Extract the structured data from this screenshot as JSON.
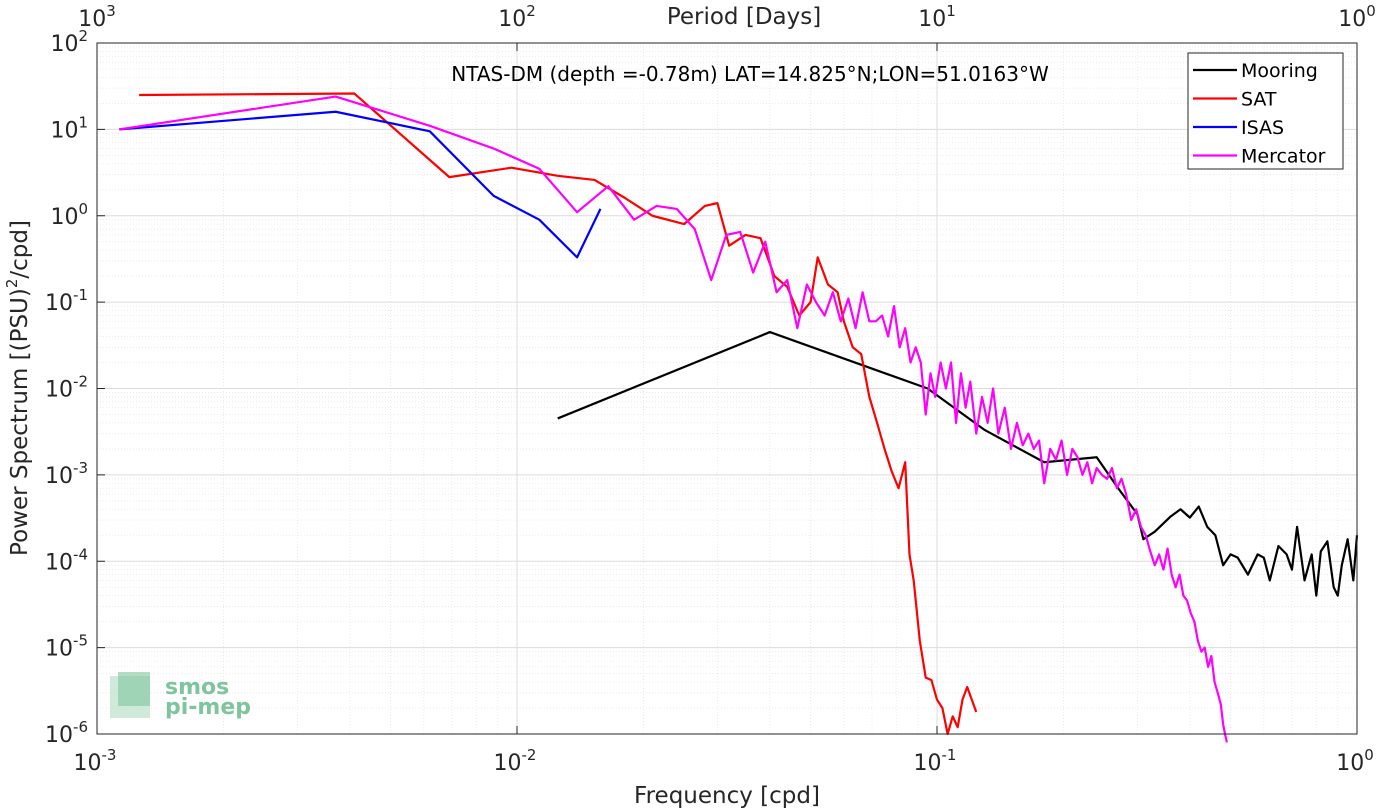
{
  "chart_data": {
    "type": "line",
    "title": "NTAS-DM (depth =-0.78m) LAT=14.825°N;LON=51.0163°W",
    "xlabel": "Frequency [cpd]",
    "ylabel_prefix": "Power Spectrum [(PSU)",
    "ylabel_exp": "2",
    "ylabel_suffix": "/cpd]",
    "top_xlabel": "Period [Days]",
    "x_scale": "log",
    "y_scale": "log",
    "xlim": [
      0.001,
      1
    ],
    "ylim": [
      1e-06,
      100
    ],
    "grid": true,
    "legend_position": "top-right",
    "x_ticks": [
      {
        "value": 0.001,
        "base": "10",
        "exp": "-3"
      },
      {
        "value": 0.01,
        "base": "10",
        "exp": "-2"
      },
      {
        "value": 0.1,
        "base": "10",
        "exp": "-1"
      },
      {
        "value": 1,
        "base": "10",
        "exp": "0"
      }
    ],
    "y_ticks": [
      {
        "value": 100,
        "base": "10",
        "exp": "2"
      },
      {
        "value": 10,
        "base": "10",
        "exp": "1"
      },
      {
        "value": 1,
        "base": "10",
        "exp": "0"
      },
      {
        "value": 0.1,
        "base": "10",
        "exp": "-1"
      },
      {
        "value": 0.01,
        "base": "10",
        "exp": "-2"
      },
      {
        "value": 0.001,
        "base": "10",
        "exp": "-3"
      },
      {
        "value": 0.0001,
        "base": "10",
        "exp": "-4"
      },
      {
        "value": 1e-05,
        "base": "10",
        "exp": "-5"
      },
      {
        "value": 1e-06,
        "base": "10",
        "exp": "-6"
      }
    ],
    "top_ticks": [
      {
        "period": 1000,
        "base": "10",
        "exp": "3"
      },
      {
        "period": 100,
        "base": "10",
        "exp": "2"
      },
      {
        "period": 10,
        "base": "10",
        "exp": "1"
      },
      {
        "period": 1,
        "base": "10",
        "exp": "0"
      }
    ],
    "series": [
      {
        "name": "Mooring",
        "color": "#000000",
        "x": [
          0.0125,
          0.04,
          0.095,
          0.13,
          0.18,
          0.24,
          0.27,
          0.3,
          0.31,
          0.33,
          0.36,
          0.38,
          0.4,
          0.42,
          0.44,
          0.46,
          0.48,
          0.5,
          0.52,
          0.55,
          0.58,
          0.6,
          0.62,
          0.65,
          0.68,
          0.7,
          0.72,
          0.75,
          0.78,
          0.8,
          0.82,
          0.85,
          0.88,
          0.9,
          0.92,
          0.95,
          0.98,
          1.0
        ],
        "y": [
          0.0045,
          0.045,
          0.01,
          0.0033,
          0.0014,
          0.0016,
          0.0007,
          0.00035,
          0.00018,
          0.00022,
          0.00033,
          0.0004,
          0.00032,
          0.00043,
          0.00025,
          0.0002,
          9e-05,
          0.00012,
          0.00011,
          7e-05,
          0.00012,
          0.00011,
          6e-05,
          0.00015,
          0.00012,
          8e-05,
          0.00025,
          6e-05,
          0.00012,
          4e-05,
          0.00013,
          0.00017,
          5e-05,
          4e-05,
          9e-05,
          0.00018,
          6e-05,
          0.0002
        ]
      },
      {
        "name": "SAT",
        "color": "#ff0000",
        "x": [
          0.00126,
          0.0041,
          0.0069,
          0.0097,
          0.0125,
          0.0153,
          0.0181,
          0.021,
          0.025,
          0.028,
          0.03,
          0.032,
          0.035,
          0.038,
          0.041,
          0.044,
          0.047,
          0.05,
          0.052,
          0.055,
          0.058,
          0.06,
          0.063,
          0.066,
          0.069,
          0.072,
          0.075,
          0.078,
          0.081,
          0.084,
          0.086,
          0.088,
          0.091,
          0.094,
          0.097,
          0.1,
          0.103,
          0.106,
          0.109,
          0.112,
          0.115,
          0.118,
          0.121,
          0.124
        ],
        "y": [
          25,
          26,
          2.8,
          3.6,
          2.9,
          2.6,
          1.6,
          1.0,
          0.8,
          1.3,
          1.4,
          0.45,
          0.6,
          0.55,
          0.2,
          0.15,
          0.07,
          0.1,
          0.33,
          0.16,
          0.13,
          0.06,
          0.03,
          0.025,
          0.008,
          0.004,
          0.002,
          0.0011,
          0.0007,
          0.0014,
          0.00012,
          6e-05,
          1.2e-05,
          4.5e-06,
          4.2e-06,
          2.5e-06,
          2e-06,
          1e-06,
          1.6e-06,
          1.2e-06,
          2.5e-06,
          3.5e-06,
          2.5e-06,
          1.8e-06
        ]
      },
      {
        "name": "ISAS",
        "color": "#0000ff",
        "x": [
          0.00113,
          0.0037,
          0.0062,
          0.0088,
          0.0113,
          0.0139,
          0.0158
        ],
        "y": [
          10,
          16,
          9.5,
          1.7,
          0.9,
          0.33,
          1.2
        ]
      },
      {
        "name": "Mercator",
        "color": "#ff00ff",
        "x": [
          0.00113,
          0.0037,
          0.0062,
          0.0088,
          0.0113,
          0.0139,
          0.0165,
          0.019,
          0.0215,
          0.024,
          0.0265,
          0.029,
          0.0315,
          0.034,
          0.0365,
          0.039,
          0.0415,
          0.044,
          0.0465,
          0.049,
          0.0515,
          0.054,
          0.0565,
          0.059,
          0.0615,
          0.064,
          0.0665,
          0.069,
          0.0715,
          0.074,
          0.0765,
          0.079,
          0.0815,
          0.084,
          0.0865,
          0.089,
          0.0915,
          0.094,
          0.0965,
          0.099,
          0.102,
          0.105,
          0.108,
          0.111,
          0.114,
          0.117,
          0.12,
          0.124,
          0.128,
          0.132,
          0.136,
          0.14,
          0.145,
          0.15,
          0.155,
          0.16,
          0.165,
          0.17,
          0.175,
          0.18,
          0.186,
          0.192,
          0.198,
          0.204,
          0.21,
          0.216,
          0.222,
          0.228,
          0.234,
          0.24,
          0.247,
          0.254,
          0.261,
          0.268,
          0.275,
          0.282,
          0.29,
          0.298,
          0.306,
          0.314,
          0.322,
          0.33,
          0.338,
          0.346,
          0.354,
          0.362,
          0.37,
          0.378,
          0.386,
          0.394,
          0.402,
          0.41,
          0.418,
          0.426,
          0.434,
          0.442,
          0.45,
          0.458,
          0.466,
          0.474,
          0.48,
          0.485,
          0.49
        ],
        "y": [
          10,
          24,
          11,
          6,
          3.5,
          1.1,
          2.2,
          0.9,
          1.3,
          1.2,
          0.7,
          0.18,
          0.6,
          0.65,
          0.22,
          0.5,
          0.13,
          0.18,
          0.05,
          0.16,
          0.1,
          0.07,
          0.13,
          0.06,
          0.11,
          0.05,
          0.13,
          0.06,
          0.06,
          0.07,
          0.04,
          0.09,
          0.03,
          0.05,
          0.02,
          0.03,
          0.02,
          0.005,
          0.015,
          0.008,
          0.02,
          0.01,
          0.02,
          0.004,
          0.015,
          0.006,
          0.012,
          0.003,
          0.008,
          0.004,
          0.01,
          0.003,
          0.006,
          0.002,
          0.004,
          0.0022,
          0.003,
          0.002,
          0.0025,
          0.0008,
          0.002,
          0.0015,
          0.0025,
          0.001,
          0.002,
          0.0016,
          0.001,
          0.0014,
          0.0008,
          0.0012,
          0.001,
          0.0009,
          0.0012,
          0.0007,
          0.0009,
          0.0006,
          0.0003,
          0.0004,
          0.00025,
          0.0002,
          0.00013,
          9e-05,
          0.00012,
          8e-05,
          0.00014,
          7e-05,
          5e-05,
          7e-05,
          4e-05,
          3.5e-05,
          2.5e-05,
          2e-05,
          1.2e-05,
          9e-06,
          1e-05,
          6e-06,
          8e-06,
          4e-06,
          3e-06,
          2.2e-06,
          1.3e-06,
          1e-06,
          8e-07
        ]
      }
    ],
    "logo": {
      "line1": "smos",
      "line2": "pi-mep",
      "color": "#7ec49c"
    }
  }
}
